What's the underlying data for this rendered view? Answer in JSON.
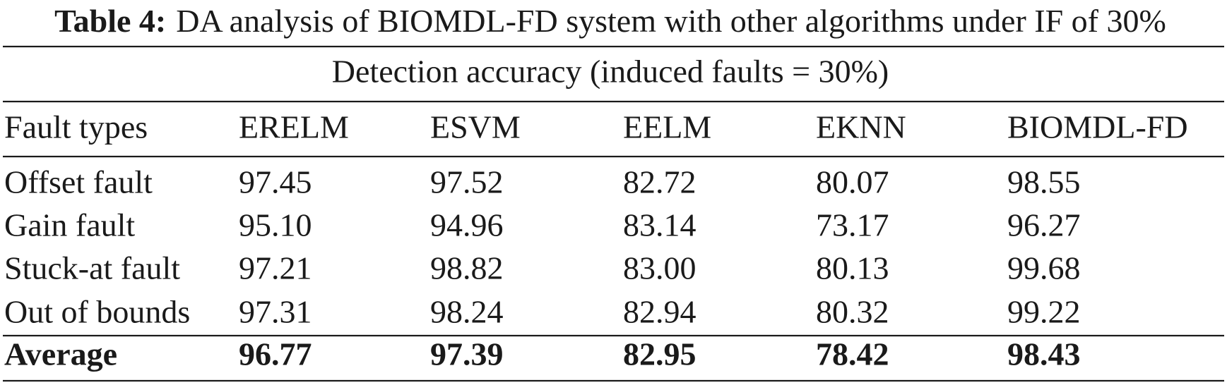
{
  "caption": {
    "label": "Table 4:",
    "text": "DA analysis of BIOMDL-FD system with other algorithms under IF of 30%"
  },
  "table": {
    "group_header": "Detection accuracy (induced faults = 30%)",
    "columns": [
      "Fault types",
      "ERELM",
      "ESVM",
      "EELM",
      "EKNN",
      "BIOMDL-FD"
    ],
    "rows": [
      [
        "Offset fault",
        "97.45",
        "97.52",
        "82.72",
        "80.07",
        "98.55"
      ],
      [
        "Gain fault",
        "95.10",
        "94.96",
        "83.14",
        "73.17",
        "96.27"
      ],
      [
        "Stuck-at fault",
        "97.21",
        "98.82",
        "83.00",
        "80.13",
        "99.68"
      ],
      [
        "Out of bounds",
        "97.31",
        "98.24",
        "82.94",
        "80.32",
        "99.22"
      ]
    ],
    "average": [
      "Average",
      "96.77",
      "97.39",
      "82.95",
      "78.42",
      "98.43"
    ]
  }
}
